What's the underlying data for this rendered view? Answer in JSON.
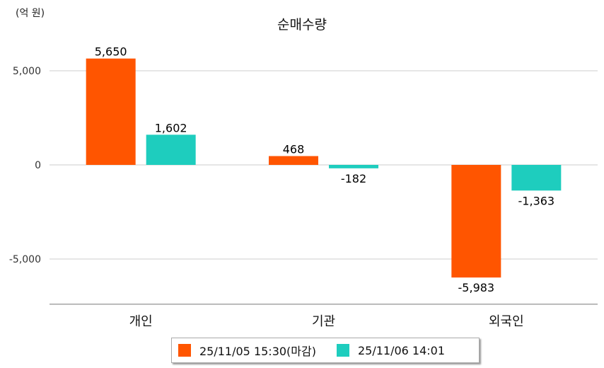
{
  "chart_data": {
    "type": "bar",
    "title": "순매수량",
    "unit_label": "(억 원)",
    "categories": [
      "개인",
      "기관",
      "외국인"
    ],
    "series": [
      {
        "name": "25/11/05 15:30(마감)",
        "color": "#FF5500",
        "values": [
          5650,
          468,
          -5983
        ],
        "labels": [
          "5,650",
          "468",
          "-5,983"
        ]
      },
      {
        "name": "25/11/06 14:01",
        "color": "#1ECDBE",
        "values": [
          1602,
          -182,
          -1363
        ],
        "labels": [
          "1,602",
          "-182",
          "-1,363"
        ]
      }
    ],
    "yticks": [
      5000,
      0,
      -5000
    ],
    "ytick_labels": [
      "5,000",
      "0",
      "-5,000"
    ],
    "ylim": [
      -7400,
      7400
    ],
    "grid": true,
    "legend_position": "bottom"
  }
}
